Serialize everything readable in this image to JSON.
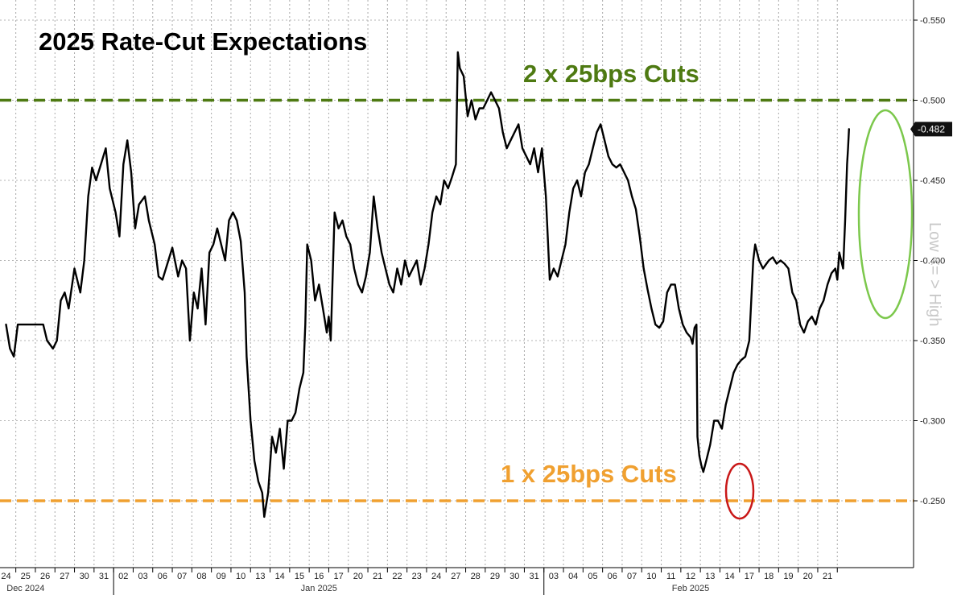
{
  "chart_data": {
    "type": "line",
    "title": "2025 Rate-Cut Expectations",
    "ylabel": "Low <= > High",
    "ylim": [
      0.205,
      0.56
    ],
    "y_axis_inverted_sign": true,
    "yticks": [
      -0.55,
      -0.5,
      -0.45,
      -0.4,
      -0.35,
      -0.3,
      -0.25
    ],
    "ytick_labels": [
      "-0.550",
      "-0.500",
      "-0.450",
      "-0.400",
      "-0.350",
      "-0.300",
      "-0.250"
    ],
    "x_day_labels": [
      "24",
      "25",
      "26",
      "27",
      "30",
      "31",
      "02",
      "03",
      "06",
      "07",
      "08",
      "09",
      "10",
      "13",
      "14",
      "15",
      "16",
      "17",
      "20",
      "21",
      "22",
      "23",
      "24",
      "27",
      "28",
      "29",
      "30",
      "31",
      "03",
      "04",
      "05",
      "06",
      "07",
      "10",
      "11",
      "12",
      "13",
      "14",
      "17",
      "18",
      "19",
      "20",
      "21"
    ],
    "month_labels": [
      {
        "label": "Dec 2024",
        "at_day_index": 1
      },
      {
        "label": "Jan 2025",
        "at_day_index": 16
      },
      {
        "label": "Feb 2025",
        "at_day_index": 35
      }
    ],
    "reference_lines": [
      {
        "label": "2 x 25bps Cuts",
        "value": 0.5,
        "color": "#4e7a12"
      },
      {
        "label": "1 x 25bps Cuts",
        "value": 0.25,
        "color": "#f0a030"
      }
    ],
    "last_value": {
      "label": "-0.482",
      "value": 0.482
    },
    "series": [
      {
        "name": "2025 Rate-Cut Expectations",
        "color": "#000000",
        "points": [
          [
            0.0,
            0.36
          ],
          [
            0.2,
            0.345
          ],
          [
            0.4,
            0.34
          ],
          [
            0.6,
            0.36
          ],
          [
            1.0,
            0.36
          ],
          [
            1.5,
            0.36
          ],
          [
            1.9,
            0.36
          ],
          [
            2.1,
            0.35
          ],
          [
            2.4,
            0.345
          ],
          [
            2.6,
            0.35
          ],
          [
            2.8,
            0.375
          ],
          [
            3.0,
            0.38
          ],
          [
            3.2,
            0.37
          ],
          [
            3.5,
            0.395
          ],
          [
            3.8,
            0.38
          ],
          [
            4.0,
            0.4
          ],
          [
            4.2,
            0.44
          ],
          [
            4.4,
            0.458
          ],
          [
            4.6,
            0.45
          ],
          [
            4.9,
            0.462
          ],
          [
            5.1,
            0.47
          ],
          [
            5.3,
            0.445
          ],
          [
            5.6,
            0.43
          ],
          [
            5.8,
            0.415
          ],
          [
            6.0,
            0.46
          ],
          [
            6.2,
            0.475
          ],
          [
            6.4,
            0.455
          ],
          [
            6.6,
            0.42
          ],
          [
            6.8,
            0.435
          ],
          [
            7.1,
            0.44
          ],
          [
            7.3,
            0.425
          ],
          [
            7.6,
            0.41
          ],
          [
            7.8,
            0.39
          ],
          [
            8.0,
            0.388
          ],
          [
            8.3,
            0.4
          ],
          [
            8.5,
            0.408
          ],
          [
            8.8,
            0.39
          ],
          [
            9.0,
            0.4
          ],
          [
            9.2,
            0.395
          ],
          [
            9.4,
            0.35
          ],
          [
            9.6,
            0.38
          ],
          [
            9.8,
            0.37
          ],
          [
            10.0,
            0.395
          ],
          [
            10.2,
            0.36
          ],
          [
            10.4,
            0.405
          ],
          [
            10.6,
            0.41
          ],
          [
            10.8,
            0.42
          ],
          [
            11.0,
            0.41
          ],
          [
            11.2,
            0.4
          ],
          [
            11.4,
            0.425
          ],
          [
            11.6,
            0.43
          ],
          [
            11.8,
            0.425
          ],
          [
            12.0,
            0.412
          ],
          [
            12.2,
            0.38
          ],
          [
            12.3,
            0.34
          ],
          [
            12.5,
            0.3
          ],
          [
            12.7,
            0.275
          ],
          [
            12.9,
            0.262
          ],
          [
            13.1,
            0.255
          ],
          [
            13.2,
            0.24
          ],
          [
            13.4,
            0.255
          ],
          [
            13.6,
            0.29
          ],
          [
            13.8,
            0.28
          ],
          [
            14.0,
            0.295
          ],
          [
            14.2,
            0.27
          ],
          [
            14.4,
            0.3
          ],
          [
            14.6,
            0.3
          ],
          [
            14.8,
            0.305
          ],
          [
            15.0,
            0.32
          ],
          [
            15.2,
            0.33
          ],
          [
            15.3,
            0.36
          ],
          [
            15.4,
            0.41
          ],
          [
            15.6,
            0.4
          ],
          [
            15.8,
            0.375
          ],
          [
            16.0,
            0.385
          ],
          [
            16.2,
            0.37
          ],
          [
            16.4,
            0.355
          ],
          [
            16.5,
            0.365
          ],
          [
            16.6,
            0.35
          ],
          [
            16.8,
            0.43
          ],
          [
            17.0,
            0.42
          ],
          [
            17.2,
            0.425
          ],
          [
            17.4,
            0.415
          ],
          [
            17.6,
            0.41
          ],
          [
            17.8,
            0.395
          ],
          [
            18.0,
            0.385
          ],
          [
            18.2,
            0.38
          ],
          [
            18.4,
            0.39
          ],
          [
            18.6,
            0.405
          ],
          [
            18.8,
            0.44
          ],
          [
            19.0,
            0.42
          ],
          [
            19.2,
            0.405
          ],
          [
            19.4,
            0.395
          ],
          [
            19.6,
            0.385
          ],
          [
            19.8,
            0.38
          ],
          [
            20.0,
            0.395
          ],
          [
            20.2,
            0.385
          ],
          [
            20.4,
            0.4
          ],
          [
            20.6,
            0.39
          ],
          [
            20.8,
            0.395
          ],
          [
            21.0,
            0.4
          ],
          [
            21.2,
            0.385
          ],
          [
            21.4,
            0.395
          ],
          [
            21.6,
            0.41
          ],
          [
            21.8,
            0.43
          ],
          [
            22.0,
            0.44
          ],
          [
            22.2,
            0.435
          ],
          [
            22.4,
            0.45
          ],
          [
            22.6,
            0.445
          ],
          [
            22.8,
            0.452
          ],
          [
            23.0,
            0.46
          ],
          [
            23.1,
            0.53
          ],
          [
            23.2,
            0.52
          ],
          [
            23.4,
            0.515
          ],
          [
            23.6,
            0.49
          ],
          [
            23.8,
            0.5
          ],
          [
            24.0,
            0.488
          ],
          [
            24.2,
            0.495
          ],
          [
            24.4,
            0.495
          ],
          [
            24.6,
            0.5
          ],
          [
            24.8,
            0.505
          ],
          [
            25.0,
            0.5
          ],
          [
            25.2,
            0.495
          ],
          [
            25.4,
            0.48
          ],
          [
            25.6,
            0.47
          ],
          [
            25.8,
            0.475
          ],
          [
            26.0,
            0.48
          ],
          [
            26.2,
            0.485
          ],
          [
            26.4,
            0.47
          ],
          [
            26.6,
            0.465
          ],
          [
            26.8,
            0.46
          ],
          [
            27.0,
            0.47
          ],
          [
            27.2,
            0.455
          ],
          [
            27.4,
            0.47
          ],
          [
            27.6,
            0.44
          ],
          [
            27.8,
            0.388
          ],
          [
            28.0,
            0.395
          ],
          [
            28.2,
            0.39
          ],
          [
            28.4,
            0.4
          ],
          [
            28.6,
            0.41
          ],
          [
            28.8,
            0.43
          ],
          [
            29.0,
            0.445
          ],
          [
            29.2,
            0.45
          ],
          [
            29.4,
            0.44
          ],
          [
            29.6,
            0.455
          ],
          [
            29.8,
            0.46
          ],
          [
            30.0,
            0.47
          ],
          [
            30.2,
            0.48
          ],
          [
            30.4,
            0.485
          ],
          [
            30.6,
            0.475
          ],
          [
            30.8,
            0.465
          ],
          [
            31.0,
            0.46
          ],
          [
            31.2,
            0.458
          ],
          [
            31.4,
            0.46
          ],
          [
            31.6,
            0.455
          ],
          [
            31.8,
            0.45
          ],
          [
            32.0,
            0.44
          ],
          [
            32.2,
            0.432
          ],
          [
            32.4,
            0.415
          ],
          [
            32.6,
            0.395
          ],
          [
            32.8,
            0.382
          ],
          [
            33.0,
            0.37
          ],
          [
            33.2,
            0.36
          ],
          [
            33.4,
            0.358
          ],
          [
            33.6,
            0.362
          ],
          [
            33.8,
            0.38
          ],
          [
            34.0,
            0.385
          ],
          [
            34.2,
            0.385
          ],
          [
            34.4,
            0.37
          ],
          [
            34.6,
            0.36
          ],
          [
            34.8,
            0.355
          ],
          [
            35.0,
            0.352
          ],
          [
            35.1,
            0.348
          ],
          [
            35.2,
            0.358
          ],
          [
            35.3,
            0.36
          ],
          [
            35.35,
            0.29
          ],
          [
            35.45,
            0.278
          ],
          [
            35.55,
            0.272
          ],
          [
            35.65,
            0.268
          ],
          [
            35.8,
            0.275
          ],
          [
            36.0,
            0.285
          ],
          [
            36.2,
            0.3
          ],
          [
            36.4,
            0.3
          ],
          [
            36.6,
            0.295
          ],
          [
            36.8,
            0.31
          ],
          [
            37.0,
            0.32
          ],
          [
            37.2,
            0.33
          ],
          [
            37.4,
            0.335
          ],
          [
            37.6,
            0.338
          ],
          [
            37.8,
            0.34
          ],
          [
            38.0,
            0.35
          ],
          [
            38.2,
            0.4
          ],
          [
            38.3,
            0.41
          ],
          [
            38.5,
            0.4
          ],
          [
            38.7,
            0.395
          ],
          [
            39.0,
            0.4
          ],
          [
            39.2,
            0.402
          ],
          [
            39.4,
            0.398
          ],
          [
            39.6,
            0.4
          ],
          [
            39.8,
            0.398
          ],
          [
            40.0,
            0.395
          ],
          [
            40.2,
            0.38
          ],
          [
            40.4,
            0.375
          ],
          [
            40.6,
            0.36
          ],
          [
            40.8,
            0.355
          ],
          [
            41.0,
            0.362
          ],
          [
            41.2,
            0.365
          ],
          [
            41.4,
            0.36
          ],
          [
            41.6,
            0.37
          ],
          [
            41.8,
            0.375
          ],
          [
            42.0,
            0.385
          ],
          [
            42.2,
            0.392
          ],
          [
            42.4,
            0.395
          ],
          [
            42.5,
            0.388
          ],
          [
            42.6,
            0.405
          ],
          [
            42.7,
            0.4
          ],
          [
            42.8,
            0.395
          ],
          [
            42.9,
            0.425
          ],
          [
            43.0,
            0.46
          ],
          [
            43.05,
            0.47
          ],
          [
            43.1,
            0.482
          ]
        ]
      }
    ]
  }
}
